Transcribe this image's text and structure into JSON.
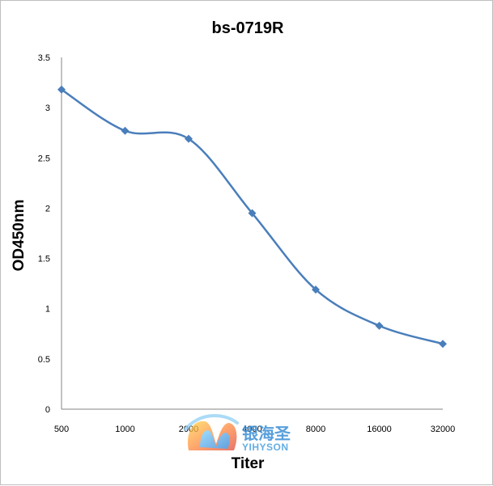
{
  "chart_data": {
    "type": "line",
    "title": "bs-0719R",
    "xlabel": "Titer",
    "ylabel": "OD450nm",
    "categories": [
      "500",
      "1000",
      "2000",
      "4000",
      "8000",
      "16000",
      "32000"
    ],
    "series": [
      {
        "values": [
          3.18,
          2.77,
          2.69,
          1.95,
          1.19,
          0.83,
          0.65
        ]
      }
    ],
    "ylim": [
      0,
      3.5
    ],
    "yticks": [
      "0",
      "0.5",
      "1",
      "1.5",
      "2",
      "2.5",
      "3",
      "3.5"
    ],
    "grid": false,
    "legend": "none",
    "line_color": "#4a7ebb"
  },
  "watermark": {
    "text_cn": "银海圣",
    "text_en": "YIHYSON"
  }
}
